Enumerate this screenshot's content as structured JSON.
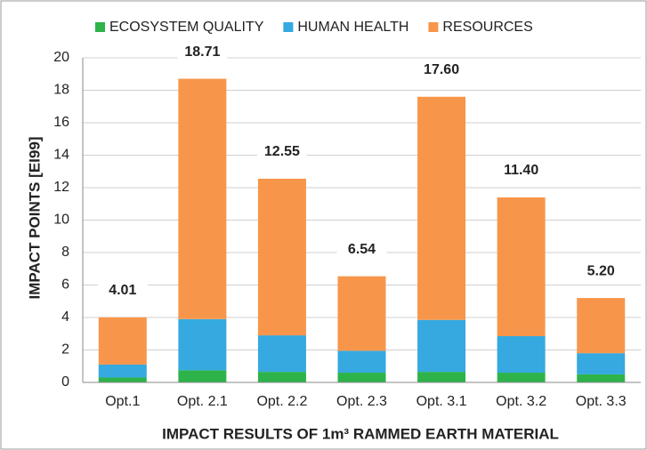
{
  "chart_data": {
    "type": "stacked-bar",
    "xlabel": "IMPACT RESULTS OF 1m³ RAMMED EARTH MATERIAL",
    "ylabel": "IMPACT POINTS [EI99]",
    "categories": [
      "Opt.1",
      "Opt. 2.1",
      "Opt. 2.2",
      "Opt. 2.3",
      "Opt. 3.1",
      "Opt. 3.2",
      "Opt. 3.3"
    ],
    "series": [
      {
        "name": "ECOSYSTEM QUALITY",
        "color": "#2db34a",
        "values": [
          0.3,
          0.75,
          0.65,
          0.6,
          0.65,
          0.6,
          0.5
        ]
      },
      {
        "name": "HUMAN HEALTH",
        "color": "#35a9e0",
        "values": [
          0.8,
          3.15,
          2.25,
          1.35,
          3.2,
          2.25,
          1.3
        ]
      },
      {
        "name": "RESOURCES",
        "color": "#f7964a",
        "values": [
          2.91,
          14.81,
          9.65,
          4.59,
          13.75,
          8.55,
          3.4
        ]
      }
    ],
    "totals": [
      4.01,
      18.71,
      12.55,
      6.54,
      17.6,
      11.4,
      5.2
    ],
    "total_labels": [
      "4.01",
      "18.71",
      "12.55",
      "6.54",
      "17.60",
      "11.40",
      "5.20"
    ],
    "ylim": [
      0,
      20
    ],
    "yticks": [
      0,
      2,
      4,
      6,
      8,
      10,
      12,
      14,
      16,
      18,
      20
    ],
    "grid": true,
    "legend": "top"
  }
}
